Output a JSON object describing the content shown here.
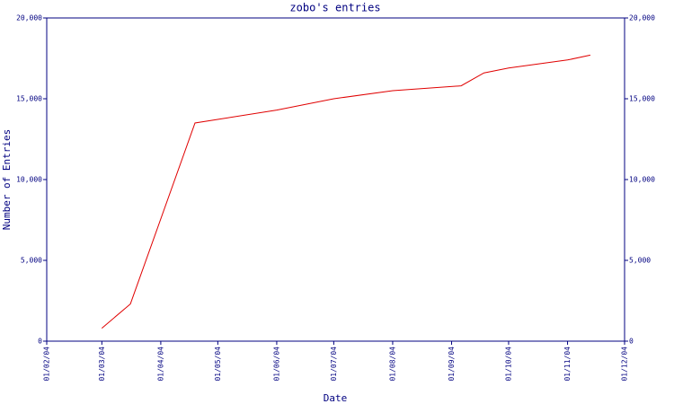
{
  "chart_data": {
    "type": "line",
    "title": "zobo's entries",
    "x_label": "Date",
    "y_label": "Number of Entries",
    "x": [
      "2004-03-01",
      "2004-03-16",
      "2004-04-19",
      "2004-06-01",
      "2004-07-01",
      "2004-08-01",
      "2004-09-06",
      "2004-09-18",
      "2004-10-01",
      "2004-11-01",
      "2004-11-13"
    ],
    "series": [
      {
        "name": "entries",
        "color": "#e00000",
        "values": [
          800,
          2300,
          13500,
          14300,
          15000,
          15500,
          15800,
          16600,
          16900,
          17400,
          17700
        ]
      }
    ],
    "xlim": [
      "2004-02-01",
      "2004-12-01"
    ],
    "xticks": [
      {
        "value": "2004-02-01",
        "label": "01/02/04"
      },
      {
        "value": "2004-03-01",
        "label": "01/03/04"
      },
      {
        "value": "2004-04-01",
        "label": "01/04/04"
      },
      {
        "value": "2004-05-01",
        "label": "01/05/04"
      },
      {
        "value": "2004-06-01",
        "label": "01/06/04"
      },
      {
        "value": "2004-07-01",
        "label": "01/07/04"
      },
      {
        "value": "2004-08-01",
        "label": "01/08/04"
      },
      {
        "value": "2004-09-01",
        "label": "01/09/04"
      },
      {
        "value": "2004-10-01",
        "label": "01/10/04"
      },
      {
        "value": "2004-11-01",
        "label": "01/11/04"
      },
      {
        "value": "2004-12-01",
        "label": "01/12/04"
      }
    ],
    "ylim": [
      0,
      20000
    ],
    "yticks": [
      0,
      {
        "value": 5000,
        "label": "5,000"
      },
      {
        "value": 10000,
        "label": "10,000"
      },
      {
        "value": 15000,
        "label": "15,000"
      },
      {
        "value": 20000,
        "label": "20,000"
      }
    ],
    "axis_color": "#000080"
  }
}
